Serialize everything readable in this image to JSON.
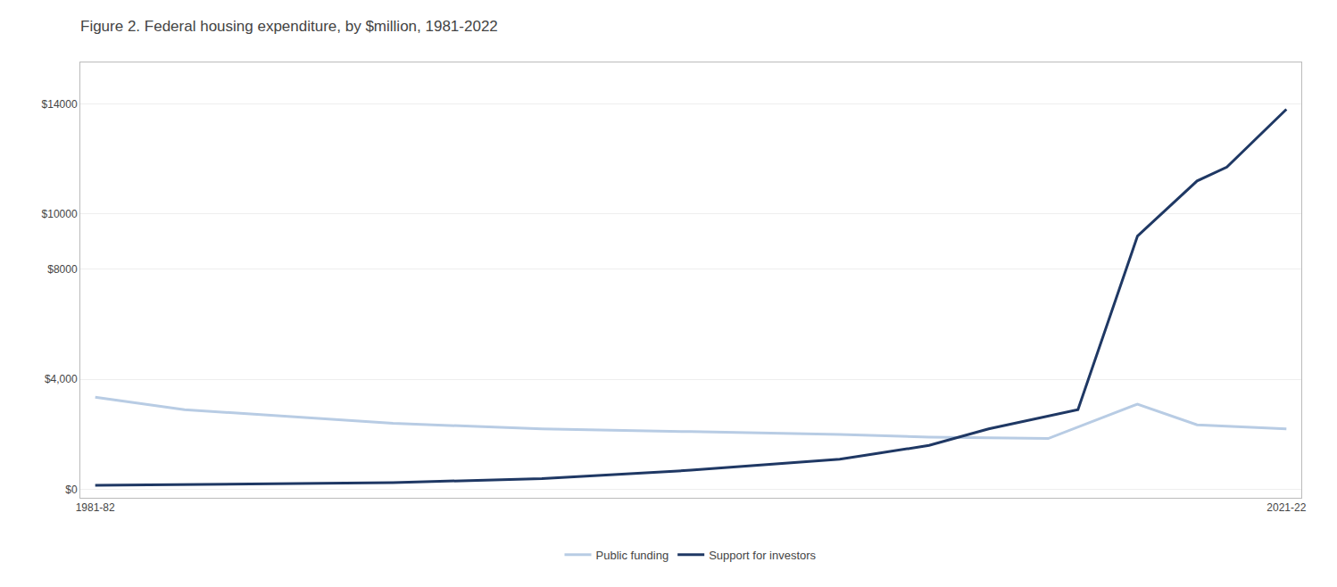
{
  "chart_data": {
    "type": "line",
    "title": "Figure 2. Federal housing expenditure, by $million, 1981-2022",
    "series": [
      {
        "name": "Public funding",
        "color": "#b8cce4",
        "x": [
          1981,
          1984,
          1991,
          1996,
          2001,
          2006,
          2009,
          2013,
          2016,
          2018,
          2021
        ],
        "values": [
          3350,
          2900,
          2400,
          2200,
          2100,
          2000,
          1900,
          1850,
          3100,
          2350,
          2200
        ]
      },
      {
        "name": "Support for investors",
        "color": "#1f3864",
        "x": [
          1981,
          1984,
          1991,
          1996,
          2001,
          2006,
          2009,
          2011,
          2014,
          2016,
          2018,
          2019,
          2021
        ],
        "values": [
          150,
          180,
          250,
          400,
          700,
          1100,
          1600,
          2200,
          2900,
          9200,
          11200,
          11700,
          13800
        ]
      }
    ],
    "xlim": [
      1980.5,
      2021.5
    ],
    "xticks": [
      {
        "value": 1981,
        "label": "1981-82"
      },
      {
        "value": 2021,
        "label": "2021-22"
      }
    ],
    "ylim": [
      -300,
      15500
    ],
    "yticks": [
      {
        "value": 0,
        "label": "$0"
      },
      {
        "value": 4000,
        "label": "$4,000"
      },
      {
        "value": 8000,
        "label": "$8000"
      },
      {
        "value": 10000,
        "label": "$10000"
      },
      {
        "value": 14000,
        "label": "$14000"
      }
    ],
    "grid": "y",
    "legend": "bottom"
  }
}
